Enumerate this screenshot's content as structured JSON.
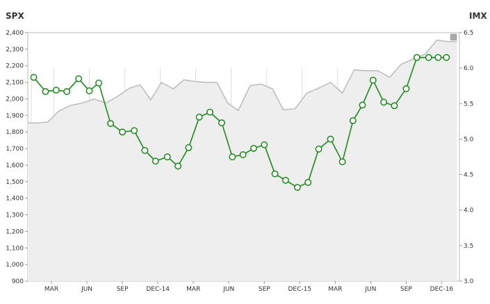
{
  "chart_data": {
    "type": "line",
    "left_axis": {
      "title": "SPX",
      "ylim": [
        900,
        2400
      ],
      "ticks": [
        900,
        1000,
        1100,
        1200,
        1300,
        1400,
        1500,
        1600,
        1700,
        1800,
        1900,
        2000,
        2100,
        2200,
        2300,
        2400
      ],
      "tick_labels": [
        "900",
        "1,000",
        "1,100",
        "1,200",
        "1,300",
        "1,400",
        "1,500",
        "1,600",
        "1,700",
        "1,800",
        "1,900",
        "2,000",
        "2,100",
        "2,200",
        "2,300",
        "2,400"
      ]
    },
    "right_axis": {
      "title": "IMX",
      "ylim": [
        3.0,
        6.5
      ],
      "ticks": [
        3.0,
        3.5,
        4.0,
        4.5,
        5.0,
        5.5,
        6.0,
        6.5
      ],
      "tick_labels": [
        "3.0",
        "3.5",
        "4.0",
        "4.5",
        "5.0",
        "5.5",
        "6.0",
        "6.5"
      ]
    },
    "x_labels": [
      {
        "label": "MAR",
        "t": 2
      },
      {
        "label": "JUN",
        "t": 5
      },
      {
        "label": "SEP",
        "t": 8
      },
      {
        "label": "DEC-14",
        "t": 11
      },
      {
        "label": "MAR",
        "t": 14
      },
      {
        "label": "JUN",
        "t": 17
      },
      {
        "label": "SEP",
        "t": 20
      },
      {
        "label": "DEC-15",
        "t": 23
      },
      {
        "label": "MAR",
        "t": 26
      },
      {
        "label": "JUN",
        "t": 29
      },
      {
        "label": "SEP",
        "t": 32
      },
      {
        "label": "DEC-16",
        "t": 35
      }
    ],
    "x_range": [
      0,
      36.5
    ],
    "series": [
      {
        "axis": "left",
        "style": "area",
        "color": "#bbbbbb",
        "fill": "#eeeeee",
        "x": [
          0,
          0.8,
          1.7,
          2.6,
          3.6,
          4.6,
          5.6,
          6.6,
          7.6,
          8.6,
          9.5,
          10.4,
          11.3,
          12.3,
          13.2,
          14.1,
          15.0,
          16.0,
          16.9,
          17.8,
          18.8,
          19.7,
          20.7,
          21.6,
          22.6,
          23.6,
          24.6,
          25.6,
          26.6,
          27.6,
          28.6,
          29.6,
          30.6,
          31.6,
          32.6,
          33.6,
          34.6,
          35.6,
          36.3
        ],
        "y": [
          1855,
          1855,
          1860,
          1925,
          1960,
          1975,
          2000,
          1975,
          2015,
          2065,
          2085,
          1995,
          2100,
          2060,
          2115,
          2105,
          2100,
          2100,
          1975,
          1930,
          2080,
          2090,
          2060,
          1935,
          1940,
          2035,
          2065,
          2100,
          2035,
          2175,
          2170,
          2170,
          2130,
          2210,
          2240,
          2270,
          2355,
          2345,
          2345
        ]
      },
      {
        "axis": "right",
        "style": "line",
        "color": "#1a8a1a",
        "x": [
          0.5,
          1.5,
          2.4,
          3.3,
          4.3,
          5.2,
          6.0,
          7.0,
          8.0,
          9.0,
          9.9,
          10.8,
          11.8,
          12.7,
          13.6,
          14.5,
          15.4,
          16.4,
          17.3,
          18.2,
          19.1,
          20.0,
          20.9,
          21.8,
          22.8,
          23.7,
          24.6,
          25.6,
          26.6,
          27.5,
          28.3,
          29.2,
          30.1,
          31.0,
          32.0,
          32.9,
          33.9,
          34.7,
          35.4
        ],
        "y": [
          5.87,
          5.67,
          5.69,
          5.67,
          5.85,
          5.68,
          5.79,
          5.22,
          5.1,
          5.12,
          4.84,
          4.69,
          4.75,
          4.62,
          4.88,
          5.31,
          5.38,
          5.23,
          4.75,
          4.78,
          4.87,
          4.92,
          4.51,
          4.42,
          4.32,
          4.39,
          4.86,
          5.0,
          4.68,
          5.26,
          5.48,
          5.83,
          5.52,
          5.47,
          5.71,
          6.15,
          6.15,
          6.15,
          6.15
        ]
      }
    ],
    "x_gridlines": [
      0.3,
      2.2,
      5.2,
      8.2,
      11.2,
      14.2,
      17.2,
      20.2,
      23.2,
      26.2,
      29.2,
      32.2,
      35.2
    ],
    "legend_marker": "gray-square"
  }
}
